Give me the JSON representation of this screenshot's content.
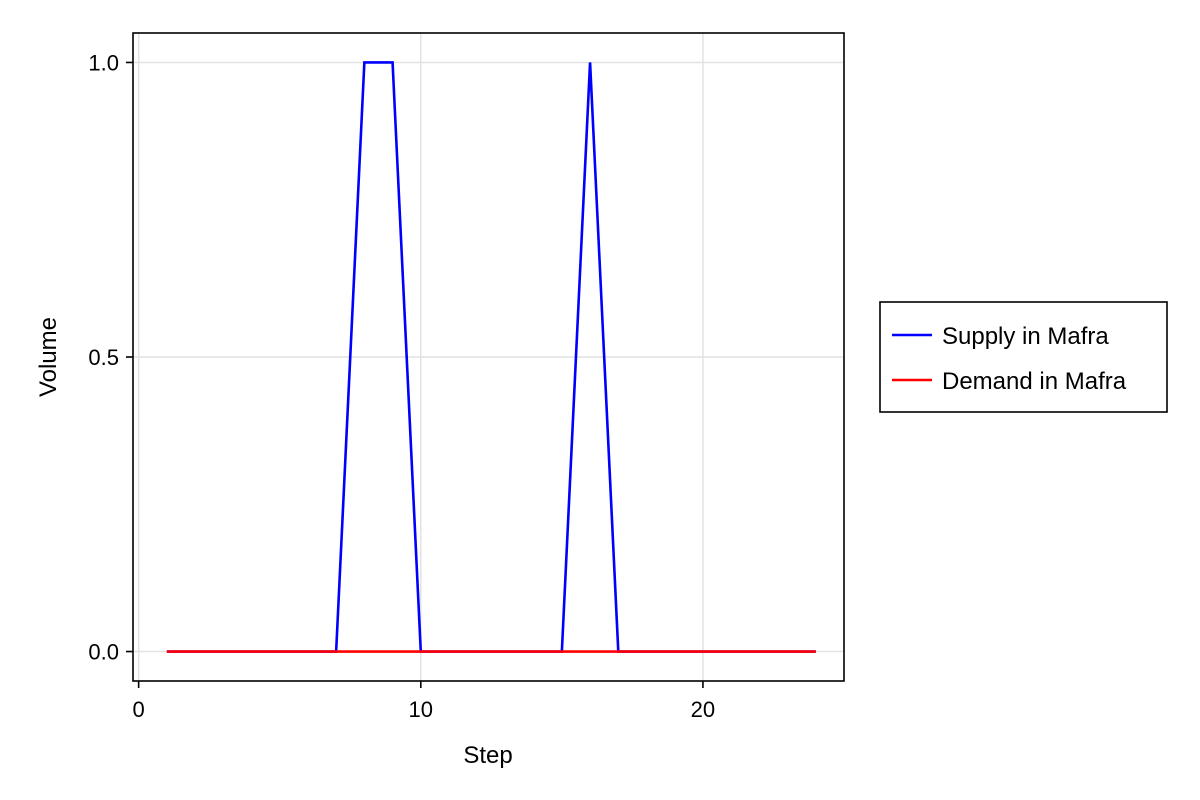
{
  "chart_data": {
    "type": "line",
    "title": "",
    "xlabel": "Step",
    "ylabel": "Volume",
    "xlim": [
      -0.2,
      25.0
    ],
    "ylim": [
      -0.05,
      1.05
    ],
    "xticks": [
      0,
      10,
      20
    ],
    "xtick_labels": [
      "0",
      "10",
      "20"
    ],
    "yticks": [
      0.0,
      0.5,
      1.0
    ],
    "ytick_labels": [
      "0.0",
      "0.5",
      "1.0"
    ],
    "grid": true,
    "legend_position": "right",
    "x": [
      1,
      2,
      3,
      4,
      5,
      6,
      7,
      8,
      9,
      10,
      11,
      12,
      13,
      14,
      15,
      16,
      17,
      18,
      19,
      20,
      21,
      22,
      23,
      24
    ],
    "series": [
      {
        "name": "Supply in Mafra",
        "color": "#0000ff",
        "values": [
          0,
          0,
          0,
          0,
          0,
          0,
          0,
          1,
          1,
          0,
          0,
          0,
          0,
          0,
          0,
          1,
          0,
          0,
          0,
          0,
          0,
          0,
          0,
          0
        ]
      },
      {
        "name": "Demand in Mafra",
        "color": "#ff0000",
        "values": [
          0,
          0,
          0,
          0,
          0,
          0,
          0,
          0,
          0,
          0,
          0,
          0,
          0,
          0,
          0,
          0,
          0,
          0,
          0,
          0,
          0,
          0,
          0,
          0
        ]
      }
    ]
  }
}
